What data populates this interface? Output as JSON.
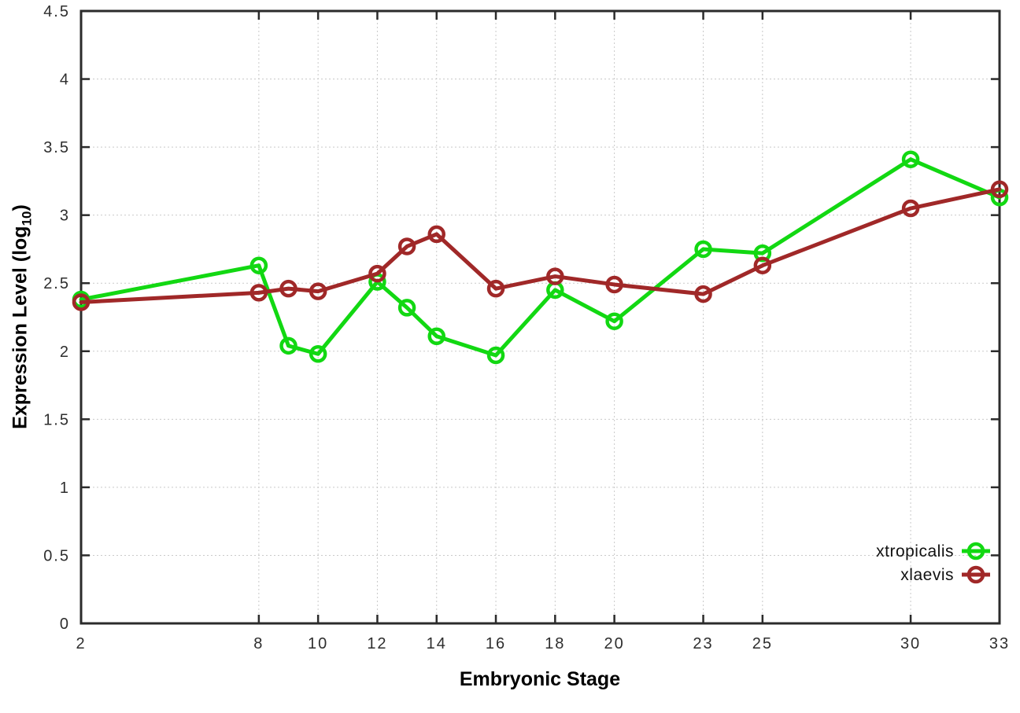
{
  "axes": {
    "x_title": "Embryonic Stage",
    "y_title_main": "Expression Level (log",
    "y_title_sub": "10",
    "y_title_close": ")"
  },
  "chart_data": {
    "type": "line",
    "title": "",
    "xlabel": "Embryonic Stage",
    "ylabel": "Expression Level (log10)",
    "x": [
      2,
      8,
      9,
      10,
      12,
      13,
      14,
      16,
      18,
      20,
      23,
      25,
      30,
      33
    ],
    "series": [
      {
        "name": "xtropicalis",
        "color": "#12d812",
        "values": [
          2.38,
          2.63,
          2.04,
          1.98,
          2.51,
          2.32,
          2.11,
          1.97,
          2.45,
          2.22,
          2.75,
          2.72,
          3.41,
          3.13
        ]
      },
      {
        "name": "xlaevis",
        "color": "#a02828",
        "values": [
          2.36,
          2.43,
          2.46,
          2.44,
          2.57,
          2.77,
          2.86,
          2.46,
          2.55,
          2.49,
          2.42,
          2.63,
          3.05,
          3.19
        ]
      }
    ],
    "x_ticks": [
      2,
      8,
      10,
      12,
      14,
      16,
      18,
      20,
      23,
      25,
      30,
      33
    ],
    "y_ticks": [
      0,
      0.5,
      1,
      1.5,
      2,
      2.5,
      3,
      3.5,
      4,
      4.5
    ],
    "xlim": [
      2,
      33
    ],
    "ylim": [
      0,
      4.5
    ],
    "grid": true,
    "marker": "open-circle",
    "legend_position": "inside bottom right",
    "legend": [
      "xtropicalis",
      "xlaevis"
    ]
  }
}
